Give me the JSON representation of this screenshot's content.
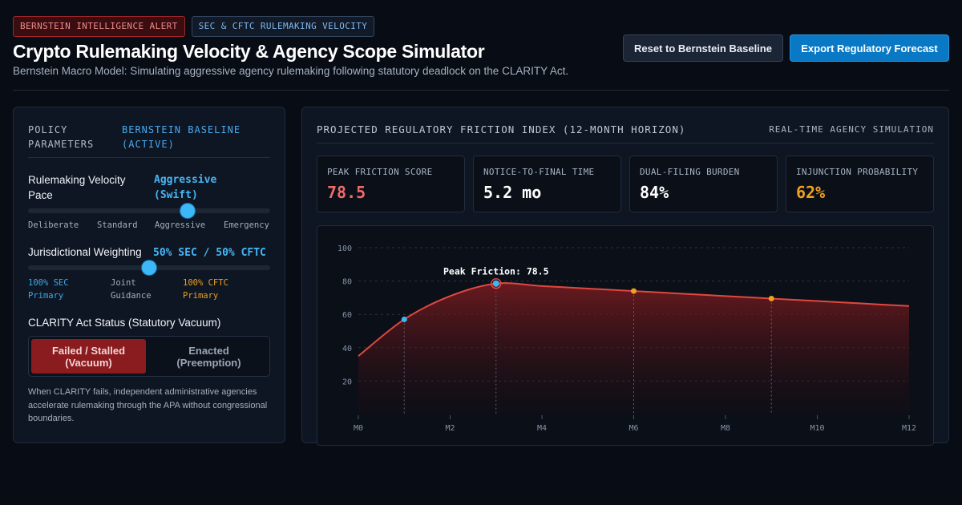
{
  "header": {
    "badges": [
      "BERNSTEIN INTELLIGENCE ALERT",
      "SEC & CFTC RULEMAKING VELOCITY"
    ],
    "title": "Crypto Rulemaking Velocity & Agency Scope Simulator",
    "subtitle": "Bernstein Macro Model: Simulating aggressive agency rulemaking following statutory deadlock on the CLARITY Act.",
    "reset_label": "Reset to Bernstein Baseline",
    "export_label": "Export Regulatory Forecast"
  },
  "params": {
    "title_line1": "POLICY",
    "title_line2": "PARAMETERS",
    "active_line1": "BERNSTEIN BASELINE",
    "active_line2": "(ACTIVE)",
    "velocity": {
      "label_line1": "Rulemaking Velocity",
      "label_line2": "Pace",
      "value_line1": "Aggressive",
      "value_line2": "(Swift)",
      "level": 0.66,
      "ticks": [
        "Deliberate",
        "Standard",
        "Aggressive",
        "Emergency"
      ]
    },
    "weighting": {
      "label": "Jurisdictional Weighting",
      "value": "50% SEC / 50% CFTC",
      "level": 0.5,
      "tick_sec_1": "100% SEC",
      "tick_sec_2": "Primary",
      "tick_joint_1": "Joint",
      "tick_joint_2": "Guidance",
      "tick_cftc_1": "100% CFTC",
      "tick_cftc_2": "Primary"
    },
    "clarity": {
      "label": "CLARITY Act Status (Statutory Vacuum)",
      "opt_on_1": "Failed / Stalled",
      "opt_on_2": "(Vacuum)",
      "opt_off_1": "Enacted",
      "opt_off_2": "(Preemption)",
      "help": "When CLARITY fails, independent administrative agencies accelerate rulemaking through the APA without congressional boundaries."
    }
  },
  "forecast": {
    "title": "PROJECTED REGULATORY FRICTION INDEX (12-MONTH HORIZON)",
    "tag": "REAL-TIME AGENCY SIMULATION",
    "kpis": [
      {
        "label": "PEAK FRICTION SCORE",
        "value": "78.5",
        "color": "#f06a6a"
      },
      {
        "label": "NOTICE-TO-FINAL TIME",
        "value": "5.2 mo",
        "color": "#ffffff"
      },
      {
        "label": "DUAL-FILING BURDEN",
        "value": "84%",
        "color": "#ffffff"
      },
      {
        "label": "INJUNCTION PROBABILITY",
        "value": "62%",
        "color": "#f0a020"
      }
    ]
  },
  "chart_data": {
    "type": "area",
    "x": [
      0,
      1,
      2,
      3,
      4,
      5,
      6,
      7,
      8,
      9,
      10,
      11,
      12
    ],
    "series": [
      {
        "values": [
          35,
          57,
          71,
          78.5,
          77,
          75.5,
          74,
          72.5,
          71,
          69.5,
          68,
          66.5,
          65
        ],
        "color": "#e0483f"
      }
    ],
    "xticks": [
      "M0",
      "M2",
      "M4",
      "M6",
      "M8",
      "M10",
      "M12"
    ],
    "yticks": [
      "20",
      "40",
      "60",
      "80",
      "100"
    ],
    "ylim": [
      0,
      100
    ],
    "xlim": [
      0,
      12
    ],
    "markers": [
      {
        "x": 1,
        "y": 57,
        "color": "#3cb7f7"
      },
      {
        "x": 3,
        "y": 78.5,
        "color": "#3cb7f7"
      },
      {
        "x": 6,
        "y": 74,
        "color": "#f0a020"
      },
      {
        "x": 9,
        "y": 69.5,
        "color": "#f0a020"
      }
    ],
    "annotation": {
      "text": "Peak Friction: 78.5",
      "x": 3,
      "y": 78.5
    },
    "grid": true
  }
}
